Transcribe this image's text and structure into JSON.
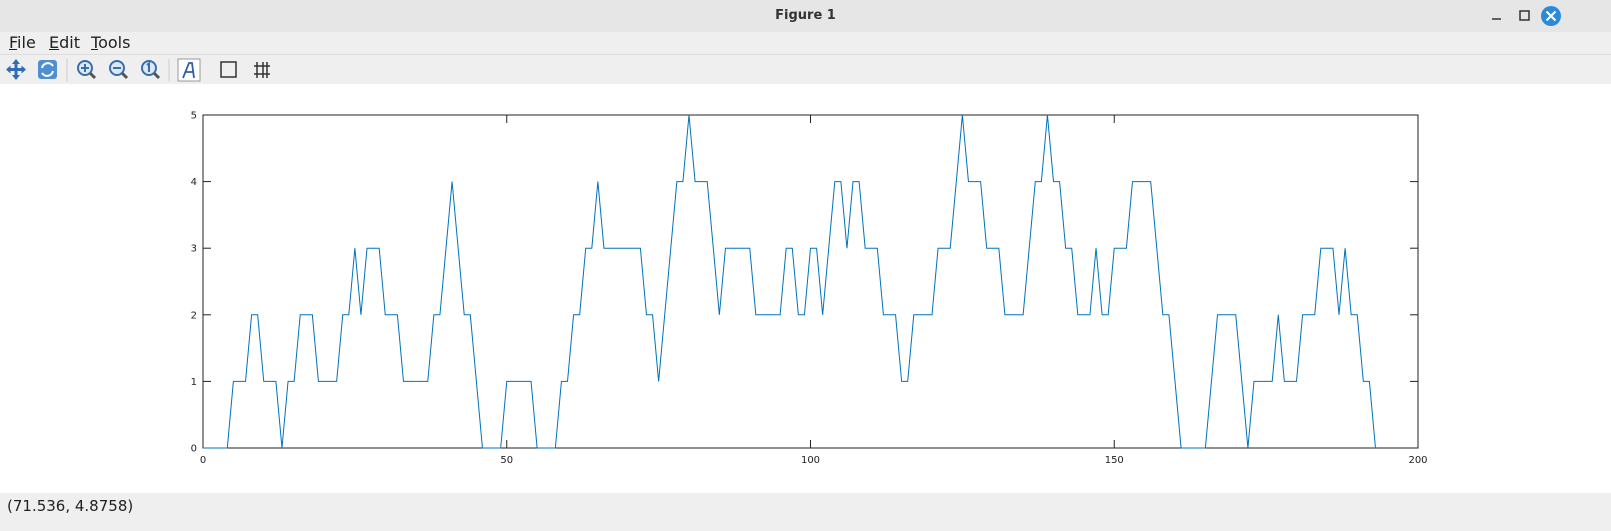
{
  "window": {
    "title": "Figure 1"
  },
  "menu": [
    "File",
    "Edit",
    "Tools"
  ],
  "status": "(71.536, 4.8758)",
  "chart_data": {
    "type": "line",
    "color": "#0072bd",
    "grid": false,
    "x": [
      0,
      1,
      2,
      3,
      4,
      5,
      6,
      7,
      8,
      9,
      10,
      11,
      12,
      13,
      14,
      15,
      16,
      17,
      18,
      19,
      20,
      21,
      22,
      23,
      24,
      25,
      26,
      27,
      28,
      29,
      30,
      31,
      32,
      33,
      34,
      35,
      36,
      37,
      38,
      39,
      40,
      41,
      42,
      43,
      44,
      45,
      46,
      47,
      48,
      49,
      50,
      51,
      52,
      53,
      54,
      55,
      56,
      57,
      58,
      59,
      60,
      61,
      62,
      63,
      64,
      65,
      66,
      67,
      68,
      69,
      70,
      71,
      72,
      73,
      74,
      75,
      76,
      77,
      78,
      79,
      80,
      81,
      82,
      83,
      84,
      85,
      86,
      87,
      88,
      89,
      90,
      91,
      92,
      93,
      94,
      95,
      96,
      97,
      98,
      99,
      100,
      101,
      102,
      103,
      104,
      105,
      106,
      107,
      108,
      109,
      110,
      111,
      112,
      113,
      114,
      115,
      116,
      117,
      118,
      119,
      120,
      121,
      122,
      123,
      124,
      125,
      126,
      127,
      128,
      129,
      130,
      131,
      132,
      133,
      134,
      135,
      136,
      137,
      138,
      139,
      140,
      141,
      142,
      143,
      144,
      145,
      146,
      147,
      148,
      149,
      150,
      151,
      152,
      153,
      154,
      155,
      156,
      157,
      158,
      159,
      160,
      161,
      162,
      163,
      164,
      165,
      166,
      167,
      168,
      169,
      170,
      171,
      172,
      173,
      174,
      175,
      176,
      177,
      178,
      179,
      180,
      181,
      182,
      183,
      184,
      185,
      186,
      187,
      188,
      189,
      190,
      191,
      192,
      193
    ],
    "values": [
      0,
      0,
      0,
      0,
      0,
      1,
      1,
      1,
      2,
      2,
      1,
      1,
      1,
      0,
      1,
      1,
      2,
      2,
      2,
      1,
      1,
      1,
      1,
      2,
      2,
      3,
      2,
      3,
      3,
      3,
      2,
      2,
      2,
      1,
      1,
      1,
      1,
      1,
      2,
      2,
      3,
      4,
      3,
      2,
      2,
      1,
      0,
      0,
      0,
      0,
      1,
      1,
      1,
      1,
      1,
      0,
      0,
      0,
      0,
      1,
      1,
      2,
      2,
      3,
      3,
      4,
      3,
      3,
      3,
      3,
      3,
      3,
      3,
      2,
      2,
      1,
      2,
      3,
      4,
      4,
      5,
      4,
      4,
      4,
      3,
      2,
      3,
      3,
      3,
      3,
      3,
      2,
      2,
      2,
      2,
      2,
      3,
      3,
      2,
      2,
      3,
      3,
      2,
      3,
      4,
      4,
      3,
      4,
      4,
      3,
      3,
      3,
      2,
      2,
      2,
      1,
      1,
      2,
      2,
      2,
      2,
      3,
      3,
      3,
      4,
      5,
      4,
      4,
      4,
      3,
      3,
      3,
      2,
      2,
      2,
      2,
      3,
      4,
      4,
      5,
      4,
      4,
      3,
      3,
      2,
      2,
      2,
      3,
      2,
      2,
      3,
      3,
      3,
      4,
      4,
      4,
      4,
      3,
      2,
      2,
      1,
      0,
      0,
      0,
      0,
      0,
      1,
      2,
      2,
      2,
      2,
      1,
      0,
      1,
      1,
      1,
      1,
      2,
      1,
      1,
      1,
      2,
      2,
      2,
      3,
      3,
      3,
      2,
      3,
      2,
      2,
      1,
      1,
      0
    ],
    "xlim": [
      0,
      200
    ],
    "xticks": [
      0,
      50,
      100,
      150,
      200
    ],
    "ylim": [
      0,
      5
    ],
    "yticks": [
      0,
      1,
      2,
      3,
      4,
      5
    ]
  }
}
